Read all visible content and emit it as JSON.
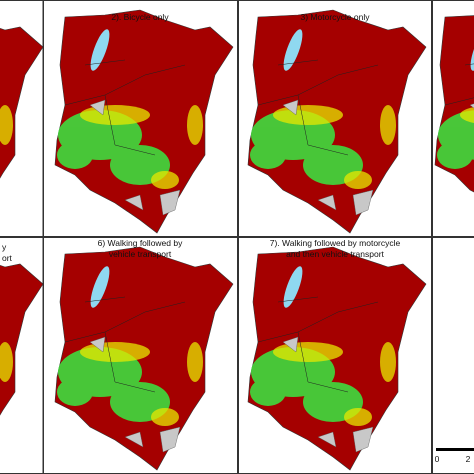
{
  "panels": [
    {
      "title": [
        "y",
        "ort"
      ]
    },
    {
      "title": [
        "2). Bicycle only"
      ]
    },
    {
      "title": [
        "3) Motorcycle only"
      ]
    },
    {
      "title": [
        "6)  Walking followed by",
        "vehicle transport"
      ]
    },
    {
      "title": [
        "7).  Walking followed by motorcycle",
        "and then vehicle transport"
      ]
    }
  ],
  "scale_bar": {
    "labels": [
      "0",
      "2"
    ]
  }
}
